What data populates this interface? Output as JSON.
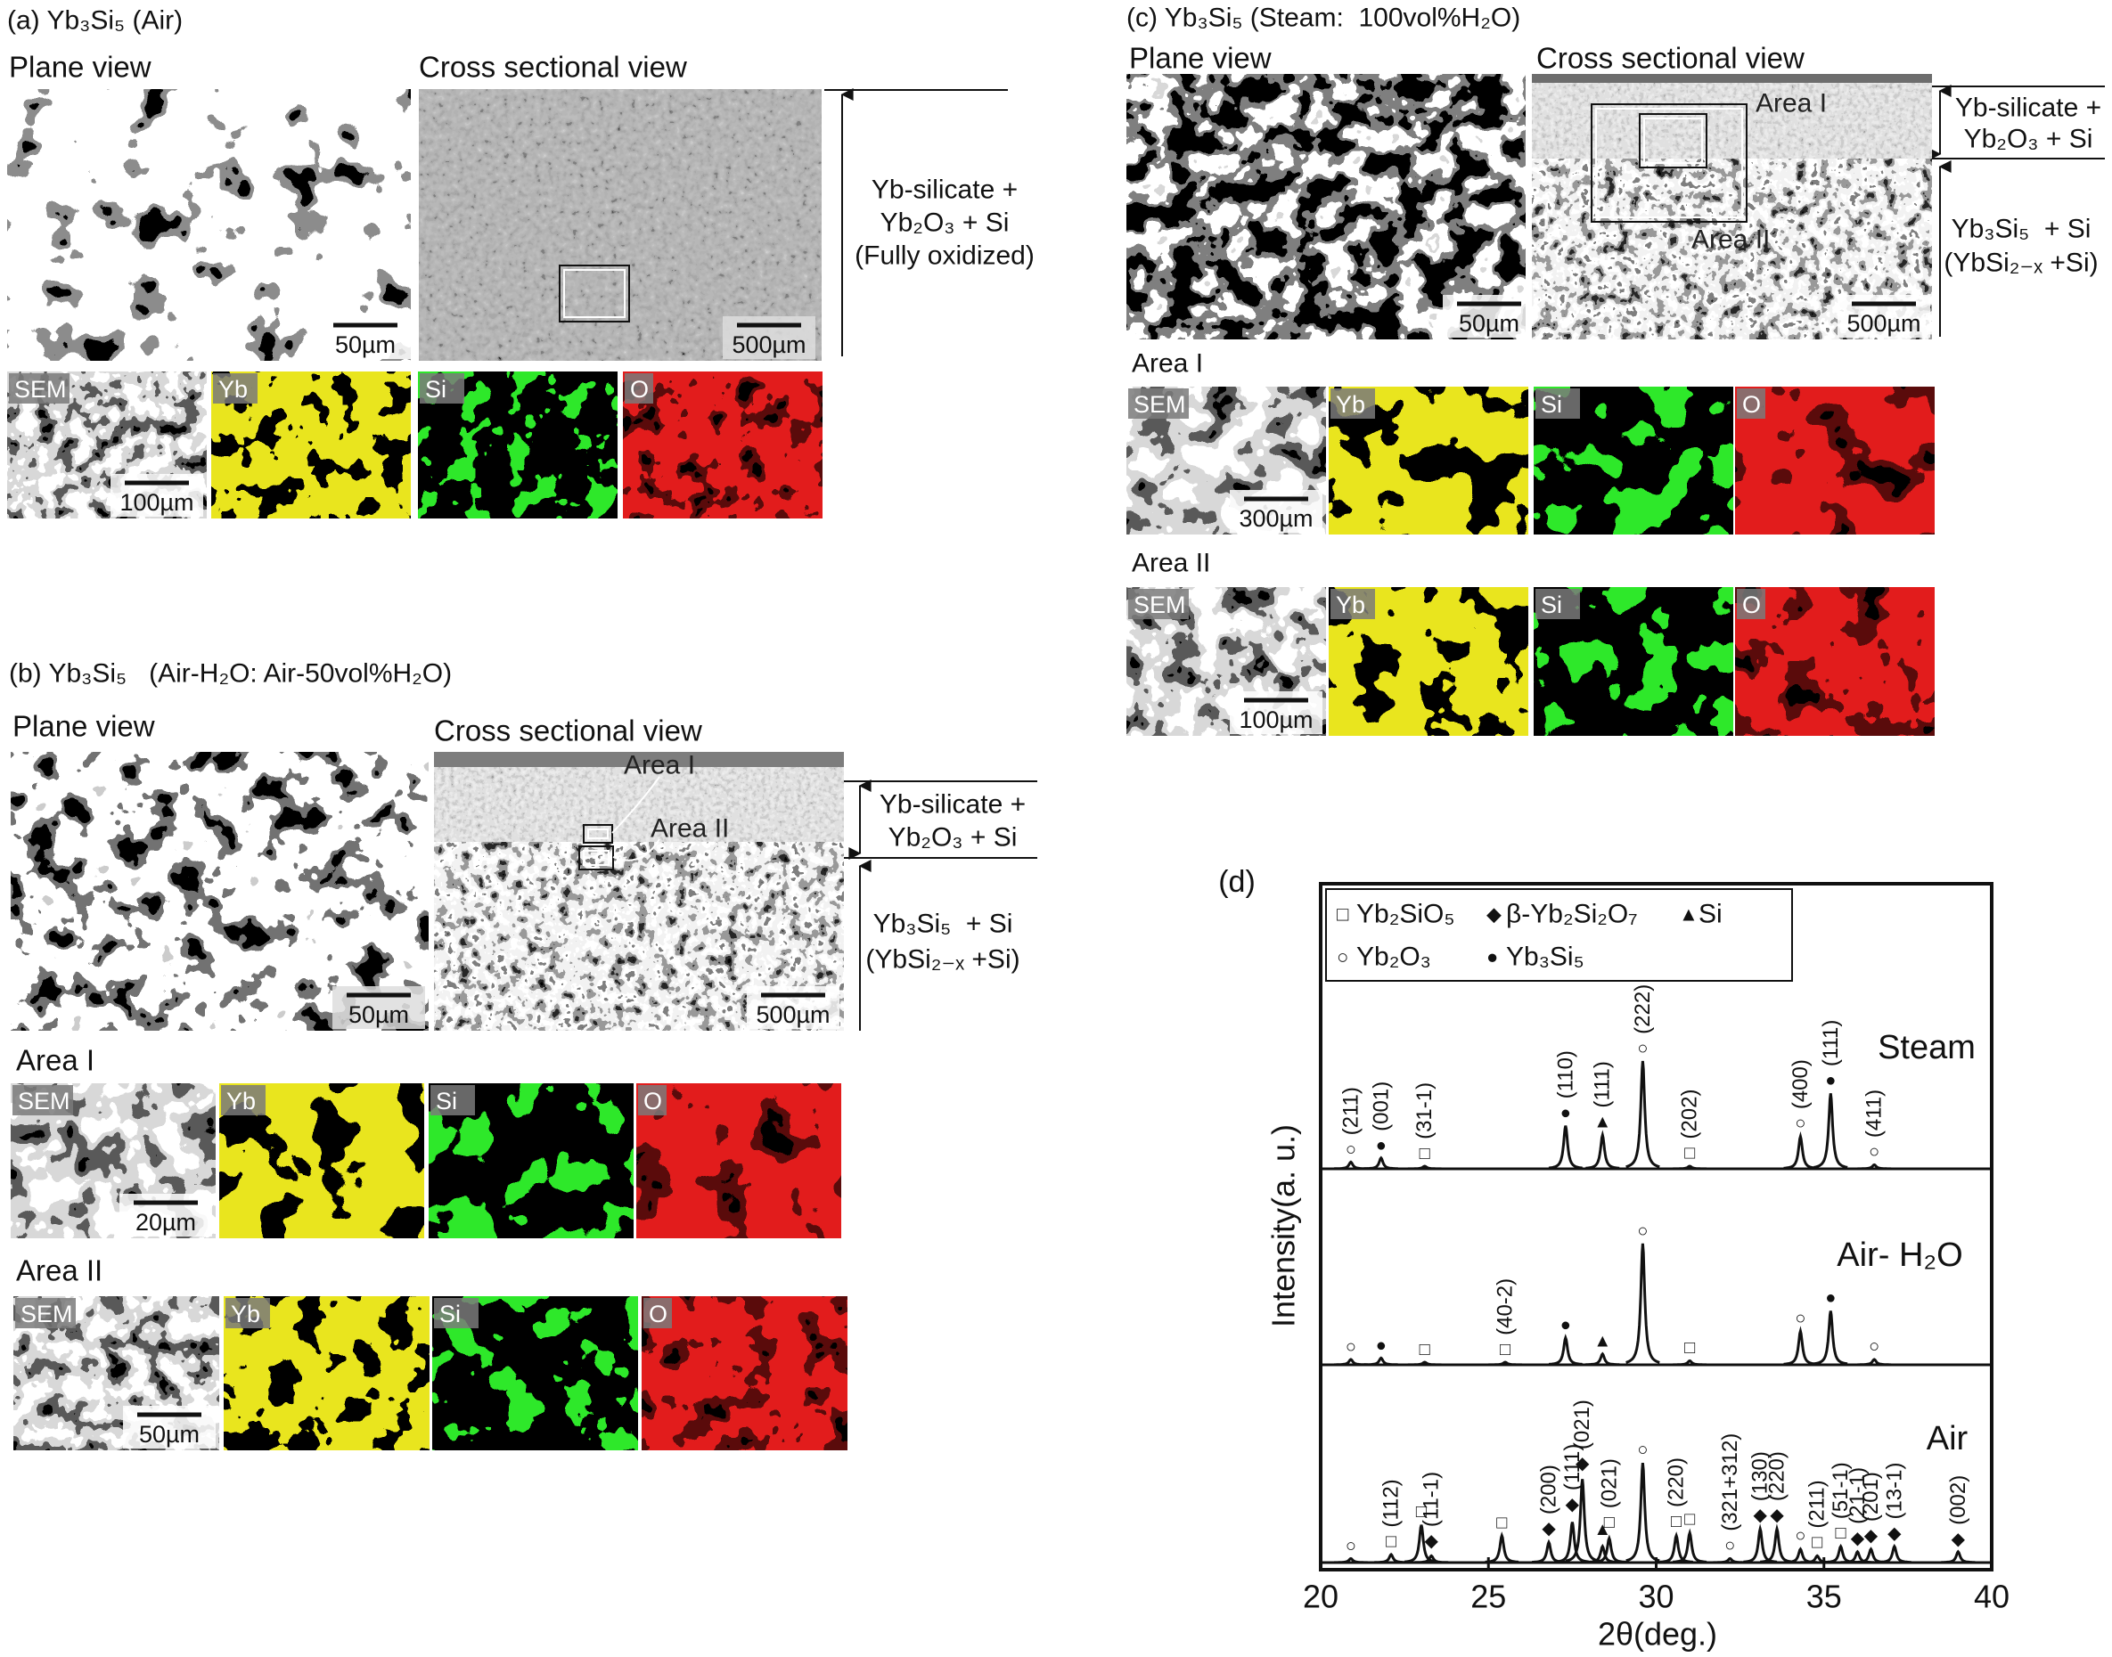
{
  "panel_a": {
    "title": "(a) Yb₃Si₅ (Air)",
    "plane_view": "Plane view",
    "cross_view": "Cross sectional view",
    "plane_scale": "50µm",
    "cross_scale": "500µm",
    "layer": [
      "Yb-silicate +",
      "Yb₂O₃ + Si",
      "(Fully oxidized)"
    ],
    "maps": {
      "labels": [
        "SEM",
        "Yb",
        "Si",
        "O"
      ],
      "scale": "100µm"
    }
  },
  "panel_b": {
    "title": "(b) Yb₃Si₅   (Air-H₂O: Air-50vol%H₂O)",
    "plane_view": "Plane view",
    "cross_view": "Cross sectional view",
    "plane_scale": "50µm",
    "cross_scale": "500µm",
    "area_marks": [
      "Area I",
      "Area II"
    ],
    "layer_top": [
      "Yb-silicate +",
      "Yb₂O₃ + Si"
    ],
    "layer_bottom": [
      "Yb₃Si₅  + Si",
      "(YbSi₂₋ₓ +Si)"
    ],
    "area_1": {
      "title": "Area I",
      "labels": [
        "SEM",
        "Yb",
        "Si",
        "O"
      ],
      "scale": "20µm"
    },
    "area_2": {
      "title": "Area II",
      "labels": [
        "SEM",
        "Yb",
        "Si",
        "O"
      ],
      "scale": "50µm"
    }
  },
  "panel_c": {
    "title": "(c) Yb₃Si₅ (Steam:  100vol%H₂O)",
    "plane_view": "Plane view",
    "cross_view": "Cross sectional view",
    "plane_scale": "50µm",
    "cross_scale": "500µm",
    "area_marks": [
      "Area I",
      "Area II"
    ],
    "layer_top": [
      "Yb-silicate +",
      "Yb₂O₃ + Si"
    ],
    "layer_bottom": [
      "Yb₃Si₅  + Si",
      "(YbSi₂₋ₓ +Si)"
    ],
    "area_1": {
      "title": "Area I",
      "labels": [
        "SEM",
        "Yb",
        "Si",
        "O"
      ],
      "scale": "300µm"
    },
    "area_2": {
      "title": "Area II",
      "labels": [
        "SEM",
        "Yb",
        "Si",
        "O"
      ],
      "scale": "100µm"
    }
  },
  "chart_data": {
    "type": "line",
    "panel_label": "(d)",
    "xlabel": "2θ(deg.)",
    "ylabel": "Intensity(a. u.)",
    "xlim": [
      20,
      40
    ],
    "xticks": [
      20,
      25,
      30,
      35,
      40
    ],
    "legend": [
      {
        "symbol": "□",
        "name": "Yb₂SiO₅"
      },
      {
        "symbol": "◆",
        "name": "β-Yb₂Si₂O₇"
      },
      {
        "symbol": "▲",
        "name": "Si"
      },
      {
        "symbol": "○",
        "name": "Yb₂O₃"
      },
      {
        "symbol": "●",
        "name": "Yb₃Si₅"
      }
    ],
    "series": [
      {
        "name": "Steam",
        "color": "#111111",
        "x": [
          20.9,
          21.8,
          23.1,
          27.3,
          28.4,
          29.6,
          31.0,
          34.3,
          35.2,
          36.5
        ],
        "values": [
          5,
          8,
          2,
          32,
          25,
          80,
          2,
          24,
          56,
          3
        ],
        "annotations": [
          {
            "x": 20.9,
            "symbol": "○",
            "label": "(211)"
          },
          {
            "x": 21.8,
            "symbol": "●",
            "label": "(001)"
          },
          {
            "x": 23.1,
            "symbol": "□",
            "label": "(31-1)"
          },
          {
            "x": 27.3,
            "symbol": "●",
            "label": "(110)"
          },
          {
            "x": 28.4,
            "symbol": "▲",
            "label": "(111)"
          },
          {
            "x": 29.6,
            "symbol": "○",
            "label": "(222)"
          },
          {
            "x": 31.0,
            "symbol": "□",
            "label": "(202)"
          },
          {
            "x": 34.3,
            "symbol": "○",
            "label": "(400)"
          },
          {
            "x": 35.2,
            "symbol": "●",
            "label": "(111)"
          },
          {
            "x": 36.5,
            "symbol": "○",
            "label": "(411)"
          }
        ]
      },
      {
        "name": "Air- H₂O",
        "color": "#111111",
        "x": [
          20.9,
          21.8,
          23.1,
          25.5,
          27.3,
          28.4,
          29.6,
          31.0,
          34.3,
          35.2,
          36.5
        ],
        "values": [
          4,
          5,
          2,
          2,
          20,
          8,
          90,
          3,
          25,
          40,
          4
        ],
        "annotations": [
          {
            "x": 20.9,
            "symbol": "○"
          },
          {
            "x": 21.8,
            "symbol": "●"
          },
          {
            "x": 23.1,
            "symbol": "□"
          },
          {
            "x": 25.5,
            "symbol": "□",
            "label": "(40-2)"
          },
          {
            "x": 27.3,
            "symbol": "●"
          },
          {
            "x": 28.4,
            "symbol": "▲"
          },
          {
            "x": 29.6,
            "symbol": "○"
          },
          {
            "x": 31.0,
            "symbol": "□"
          },
          {
            "x": 34.3,
            "symbol": "○"
          },
          {
            "x": 35.2,
            "symbol": "●"
          },
          {
            "x": 36.5,
            "symbol": "○"
          }
        ]
      },
      {
        "name": "Air",
        "color": "#111111",
        "x": [
          20.9,
          22.1,
          23.0,
          23.3,
          25.4,
          26.8,
          27.5,
          27.8,
          28.4,
          28.6,
          29.6,
          30.6,
          31.0,
          32.2,
          33.1,
          33.6,
          34.3,
          34.8,
          35.5,
          36.0,
          36.4,
          37.1,
          39.0
        ],
        "values": [
          3,
          6,
          28,
          5,
          20,
          15,
          30,
          62,
          12,
          18,
          74,
          20,
          22,
          3,
          25,
          25,
          10,
          5,
          12,
          8,
          10,
          12,
          8
        ],
        "annotations": [
          {
            "x": 20.9,
            "symbol": "○"
          },
          {
            "x": 22.1,
            "symbol": "□",
            "label": "(112)"
          },
          {
            "x": 23.0,
            "symbol": "□"
          },
          {
            "x": 23.3,
            "symbol": "◆",
            "label": "(11-1)"
          },
          {
            "x": 25.4,
            "symbol": "□"
          },
          {
            "x": 26.8,
            "symbol": "◆",
            "label": "(200)"
          },
          {
            "x": 27.5,
            "symbol": "◆",
            "label": "(111)"
          },
          {
            "x": 27.8,
            "symbol": "◆",
            "label": "(021)"
          },
          {
            "x": 28.4,
            "symbol": "▲"
          },
          {
            "x": 28.6,
            "symbol": "□",
            "label": "(021)"
          },
          {
            "x": 29.6,
            "symbol": "○"
          },
          {
            "x": 30.6,
            "symbol": "□",
            "label": "(220)"
          },
          {
            "x": 31.0,
            "symbol": "□"
          },
          {
            "x": 32.2,
            "symbol": "○",
            "label": "(321+312)"
          },
          {
            "x": 33.1,
            "symbol": "◆",
            "label": "(130)"
          },
          {
            "x": 33.6,
            "symbol": "◆",
            "label": "(220)"
          },
          {
            "x": 34.3,
            "symbol": "○"
          },
          {
            "x": 34.8,
            "symbol": "□",
            "label": "(211)"
          },
          {
            "x": 35.5,
            "symbol": "□",
            "label": "(51-1)"
          },
          {
            "x": 36.0,
            "symbol": "◆",
            "label": "(21-1)"
          },
          {
            "x": 36.4,
            "symbol": "◆",
            "label": "(201)"
          },
          {
            "x": 37.1,
            "symbol": "◆",
            "label": "(13-1)"
          },
          {
            "x": 39.0,
            "symbol": "◆",
            "label": "(002)"
          }
        ]
      }
    ]
  }
}
